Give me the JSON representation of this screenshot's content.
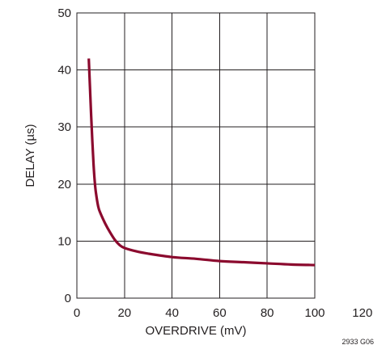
{
  "chart_data": {
    "type": "line",
    "title": "",
    "xlabel": "OVERDRIVE (mV)",
    "ylabel": "DELAY (µs)",
    "xlim": [
      0,
      120
    ],
    "ylim": [
      0,
      50
    ],
    "x_ticks": [
      0,
      20,
      40,
      60,
      80,
      100,
      120
    ],
    "y_ticks": [
      0,
      10,
      20,
      30,
      40,
      50
    ],
    "grid": true,
    "figure_id": "2933 G06",
    "colors": {
      "line": "#8b0a2e",
      "axis": "#231f20"
    },
    "series": [
      {
        "x": [
          5,
          5.5,
          6,
          6.5,
          7,
          7.5,
          8,
          9,
          10,
          12,
          14,
          16,
          18,
          20,
          25,
          30,
          40,
          50,
          60,
          70,
          80,
          90,
          100
        ],
        "y": [
          42,
          37,
          32,
          27.5,
          23.5,
          20.5,
          18.5,
          16,
          14.8,
          13,
          11.5,
          10.2,
          9.3,
          8.8,
          8.2,
          7.8,
          7.2,
          6.9,
          6.5,
          6.3,
          6.1,
          5.9,
          5.8
        ]
      }
    ]
  }
}
